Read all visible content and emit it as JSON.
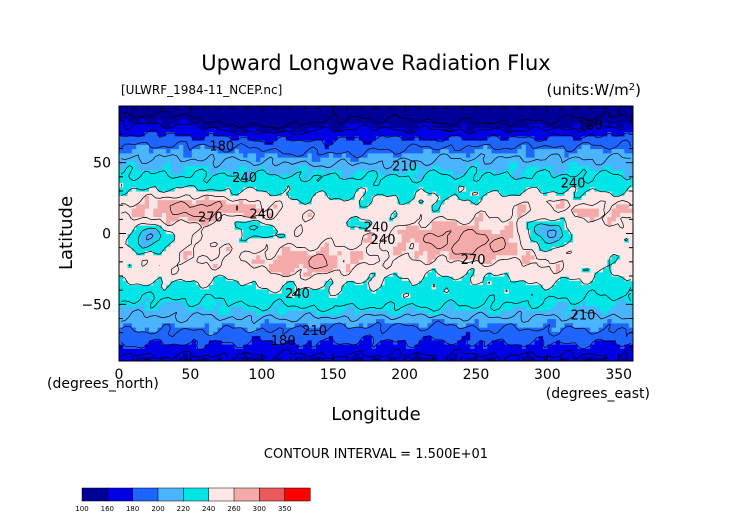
{
  "chart_data": {
    "type": "heatmap",
    "title": "Upward Longwave Radiation Flux",
    "subtitle_left": "[ULWRF_1984-11_NCEP.nc]",
    "subtitle_right": "(units:W/m^2)",
    "xlabel": "Longitude",
    "ylabel": "Latitude",
    "x_unit_label": "(degrees_east)",
    "y_unit_label": "(degrees_north)",
    "xlim": [
      0,
      360
    ],
    "ylim": [
      -90,
      90
    ],
    "x_ticks": [
      0,
      50,
      100,
      150,
      200,
      250,
      300,
      350
    ],
    "y_ticks": [
      -50,
      0,
      50
    ],
    "contour_interval_text": "CONTOUR INTERVAL = 1.500E+01",
    "colorbar_levels": [
      100,
      160,
      180,
      200,
      220,
      240,
      260,
      300,
      350
    ],
    "colorbar_colors": [
      "#000099",
      "#0000e6",
      "#1e64ff",
      "#4ab4ff",
      "#00e6e6",
      "#ffe6e6",
      "#f5aaaa",
      "#eb5a5a",
      "#ff0000"
    ],
    "contour_labels": [
      {
        "text": "180",
        "x": 72,
        "y": 62
      },
      {
        "text": "180",
        "x": 330,
        "y": 77
      },
      {
        "text": "240",
        "x": 88,
        "y": 40
      },
      {
        "text": "210",
        "x": 200,
        "y": 48
      },
      {
        "text": "240",
        "x": 318,
        "y": 36
      },
      {
        "text": "270",
        "x": 64,
        "y": 12
      },
      {
        "text": "240",
        "x": 100,
        "y": 14
      },
      {
        "text": "240",
        "x": 180,
        "y": 5
      },
      {
        "text": "240",
        "x": 185,
        "y": -4
      },
      {
        "text": "270",
        "x": 248,
        "y": -18
      },
      {
        "text": "240",
        "x": 125,
        "y": -42
      },
      {
        "text": "210",
        "x": 137,
        "y": -68
      },
      {
        "text": "210",
        "x": 325,
        "y": -57
      },
      {
        "text": "180",
        "x": 115,
        "y": -75
      }
    ]
  }
}
